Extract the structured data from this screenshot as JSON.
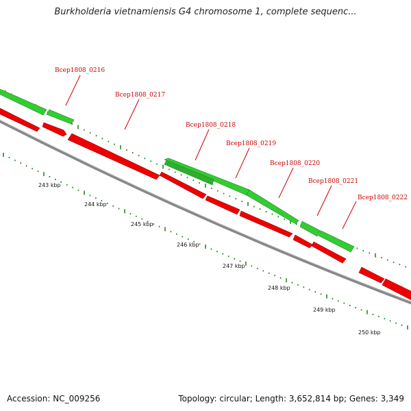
{
  "title": "Burkholderia vietnamiensis G4 chromosome 1, complete sequenc...",
  "footer": {
    "accession": "Accession: NC_009256",
    "stats": "Topology: circular; Length: 3,652,814 bp; Genes: 3,349"
  },
  "colors": {
    "forward_gene": "#33cc33",
    "reverse_gene": "#ee0000",
    "backbone": "#888888",
    "ticks": "#228822",
    "label": "#cc0000"
  },
  "scale_ticks_kbp": [
    243,
    244,
    245,
    246,
    247,
    248,
    249,
    250
  ],
  "gene_labels": [
    "Bcep1808_0216",
    "Bcep1808_0217",
    "Bcep1808_0218",
    "Bcep1808_0219",
    "Bcep1808_0220",
    "Bcep1808_0221",
    "Bcep1808_0222"
  ]
}
